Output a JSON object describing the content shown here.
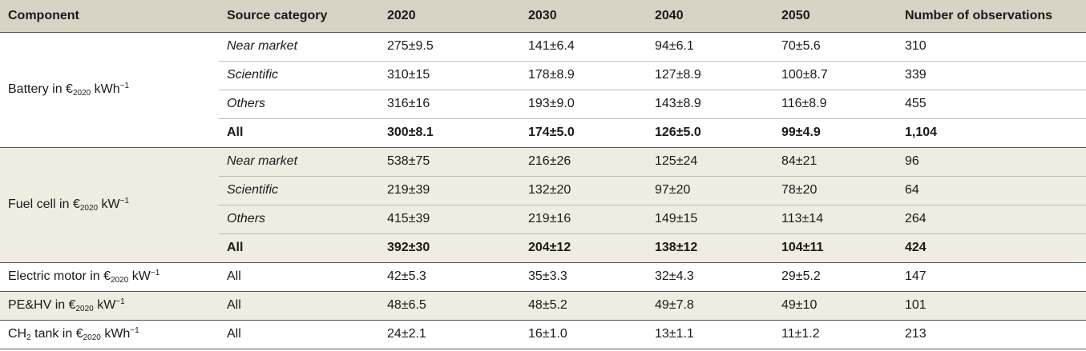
{
  "headers": [
    "Component",
    "Source category",
    "2020",
    "2030",
    "2040",
    "2050",
    "Number of observations"
  ],
  "unit_prefix": "€",
  "unit_sub": "2020",
  "groups": [
    {
      "component": "Battery in",
      "unit": "kWh",
      "sup": "−1",
      "rows": [
        {
          "cat": "Near market",
          "v": [
            "275±9.5",
            "141±6.4",
            "94±6.1",
            "70±5.6",
            "310"
          ]
        },
        {
          "cat": "Scientific",
          "v": [
            "310±15",
            "178±8.9",
            "127±8.9",
            "100±8.7",
            "339"
          ]
        },
        {
          "cat": "Others",
          "v": [
            "316±16",
            "193±9.0",
            "143±8.9",
            "116±8.9",
            "455"
          ]
        },
        {
          "cat": "All",
          "v": [
            "300±8.1",
            "174±5.0",
            "126±5.0",
            "99±4.9",
            "1,104"
          ]
        }
      ]
    },
    {
      "component": "Fuel cell in",
      "unit": "kW",
      "sup": "−1",
      "rows": [
        {
          "cat": "Near market",
          "v": [
            "538±75",
            "216±26",
            "125±24",
            "84±21",
            "96"
          ]
        },
        {
          "cat": "Scientific",
          "v": [
            "219±39",
            "132±20",
            "97±20",
            "78±20",
            "64"
          ]
        },
        {
          "cat": "Others",
          "v": [
            "415±39",
            "219±16",
            "149±15",
            "113±14",
            "264"
          ]
        },
        {
          "cat": "All",
          "v": [
            "392±30",
            "204±12",
            "138±12",
            "104±11",
            "424"
          ]
        }
      ]
    }
  ],
  "singles": [
    {
      "component": "Electric motor in",
      "chem_sub": "",
      "unit": "kW",
      "sup": "−1",
      "cat": "All",
      "v": [
        "42±5.3",
        "35±3.3",
        "32±4.3",
        "29±5.2",
        "147"
      ]
    },
    {
      "component": "PE&HV in",
      "chem_sub": "",
      "unit": "kW",
      "sup": "−1",
      "cat": "All",
      "v": [
        "48±6.5",
        "48±5.2",
        "49±7.8",
        "49±10",
        "101"
      ]
    },
    {
      "component": "CH",
      "chem_sub": "2",
      "component_rest": " tank in",
      "unit": "kWh",
      "sup": "−1",
      "cat": "All",
      "v": [
        "24±2.1",
        "16±1.0",
        "13±1.1",
        "11±1.2",
        "213"
      ]
    }
  ]
}
